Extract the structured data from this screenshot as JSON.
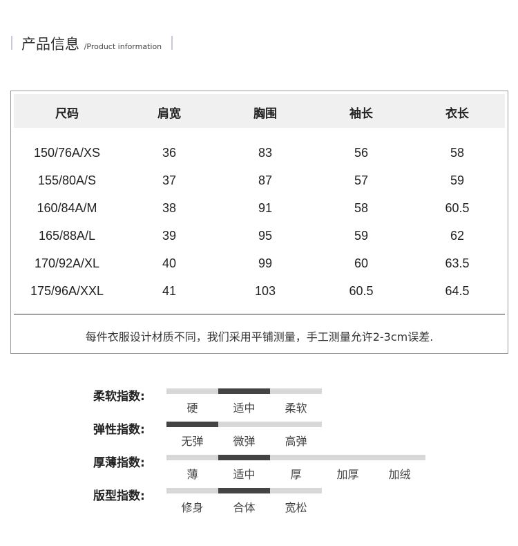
{
  "header": {
    "title": "产品信息",
    "separator": "/",
    "subtitle": "Product information"
  },
  "table": {
    "columns": [
      "尺码",
      "肩宽",
      "胸围",
      "袖长",
      "衣长"
    ],
    "rows": [
      [
        "150/76A/XS",
        "36",
        "83",
        "56",
        "58"
      ],
      [
        "155/80A/S",
        "37",
        "87",
        "57",
        "59"
      ],
      [
        "160/84A/M",
        "38",
        "91",
        "58",
        "60.5"
      ],
      [
        "165/88A/L",
        "39",
        "95",
        "59",
        "62"
      ],
      [
        "170/92A/XL",
        "40",
        "99",
        "60",
        "63.5"
      ],
      [
        "175/96A/XXL",
        "41",
        "103",
        "60.5",
        "64.5"
      ]
    ],
    "note": "每件衣服设计材质不同，我们采用平铺测量，手工测量允许2-3cm误差."
  },
  "indices": [
    {
      "label": "柔软指数:",
      "options": [
        "硬",
        "适中",
        "柔软"
      ],
      "selected": 1
    },
    {
      "label": "弹性指数:",
      "options": [
        "无弹",
        "微弹",
        "高弹"
      ],
      "selected": 0
    },
    {
      "label": "厚薄指数:",
      "options": [
        "薄",
        "适中",
        "厚",
        "加厚",
        "加绒"
      ],
      "selected": 1
    },
    {
      "label": "版型指数:",
      "options": [
        "修身",
        "合体",
        "宽松"
      ],
      "selected": 1
    }
  ]
}
